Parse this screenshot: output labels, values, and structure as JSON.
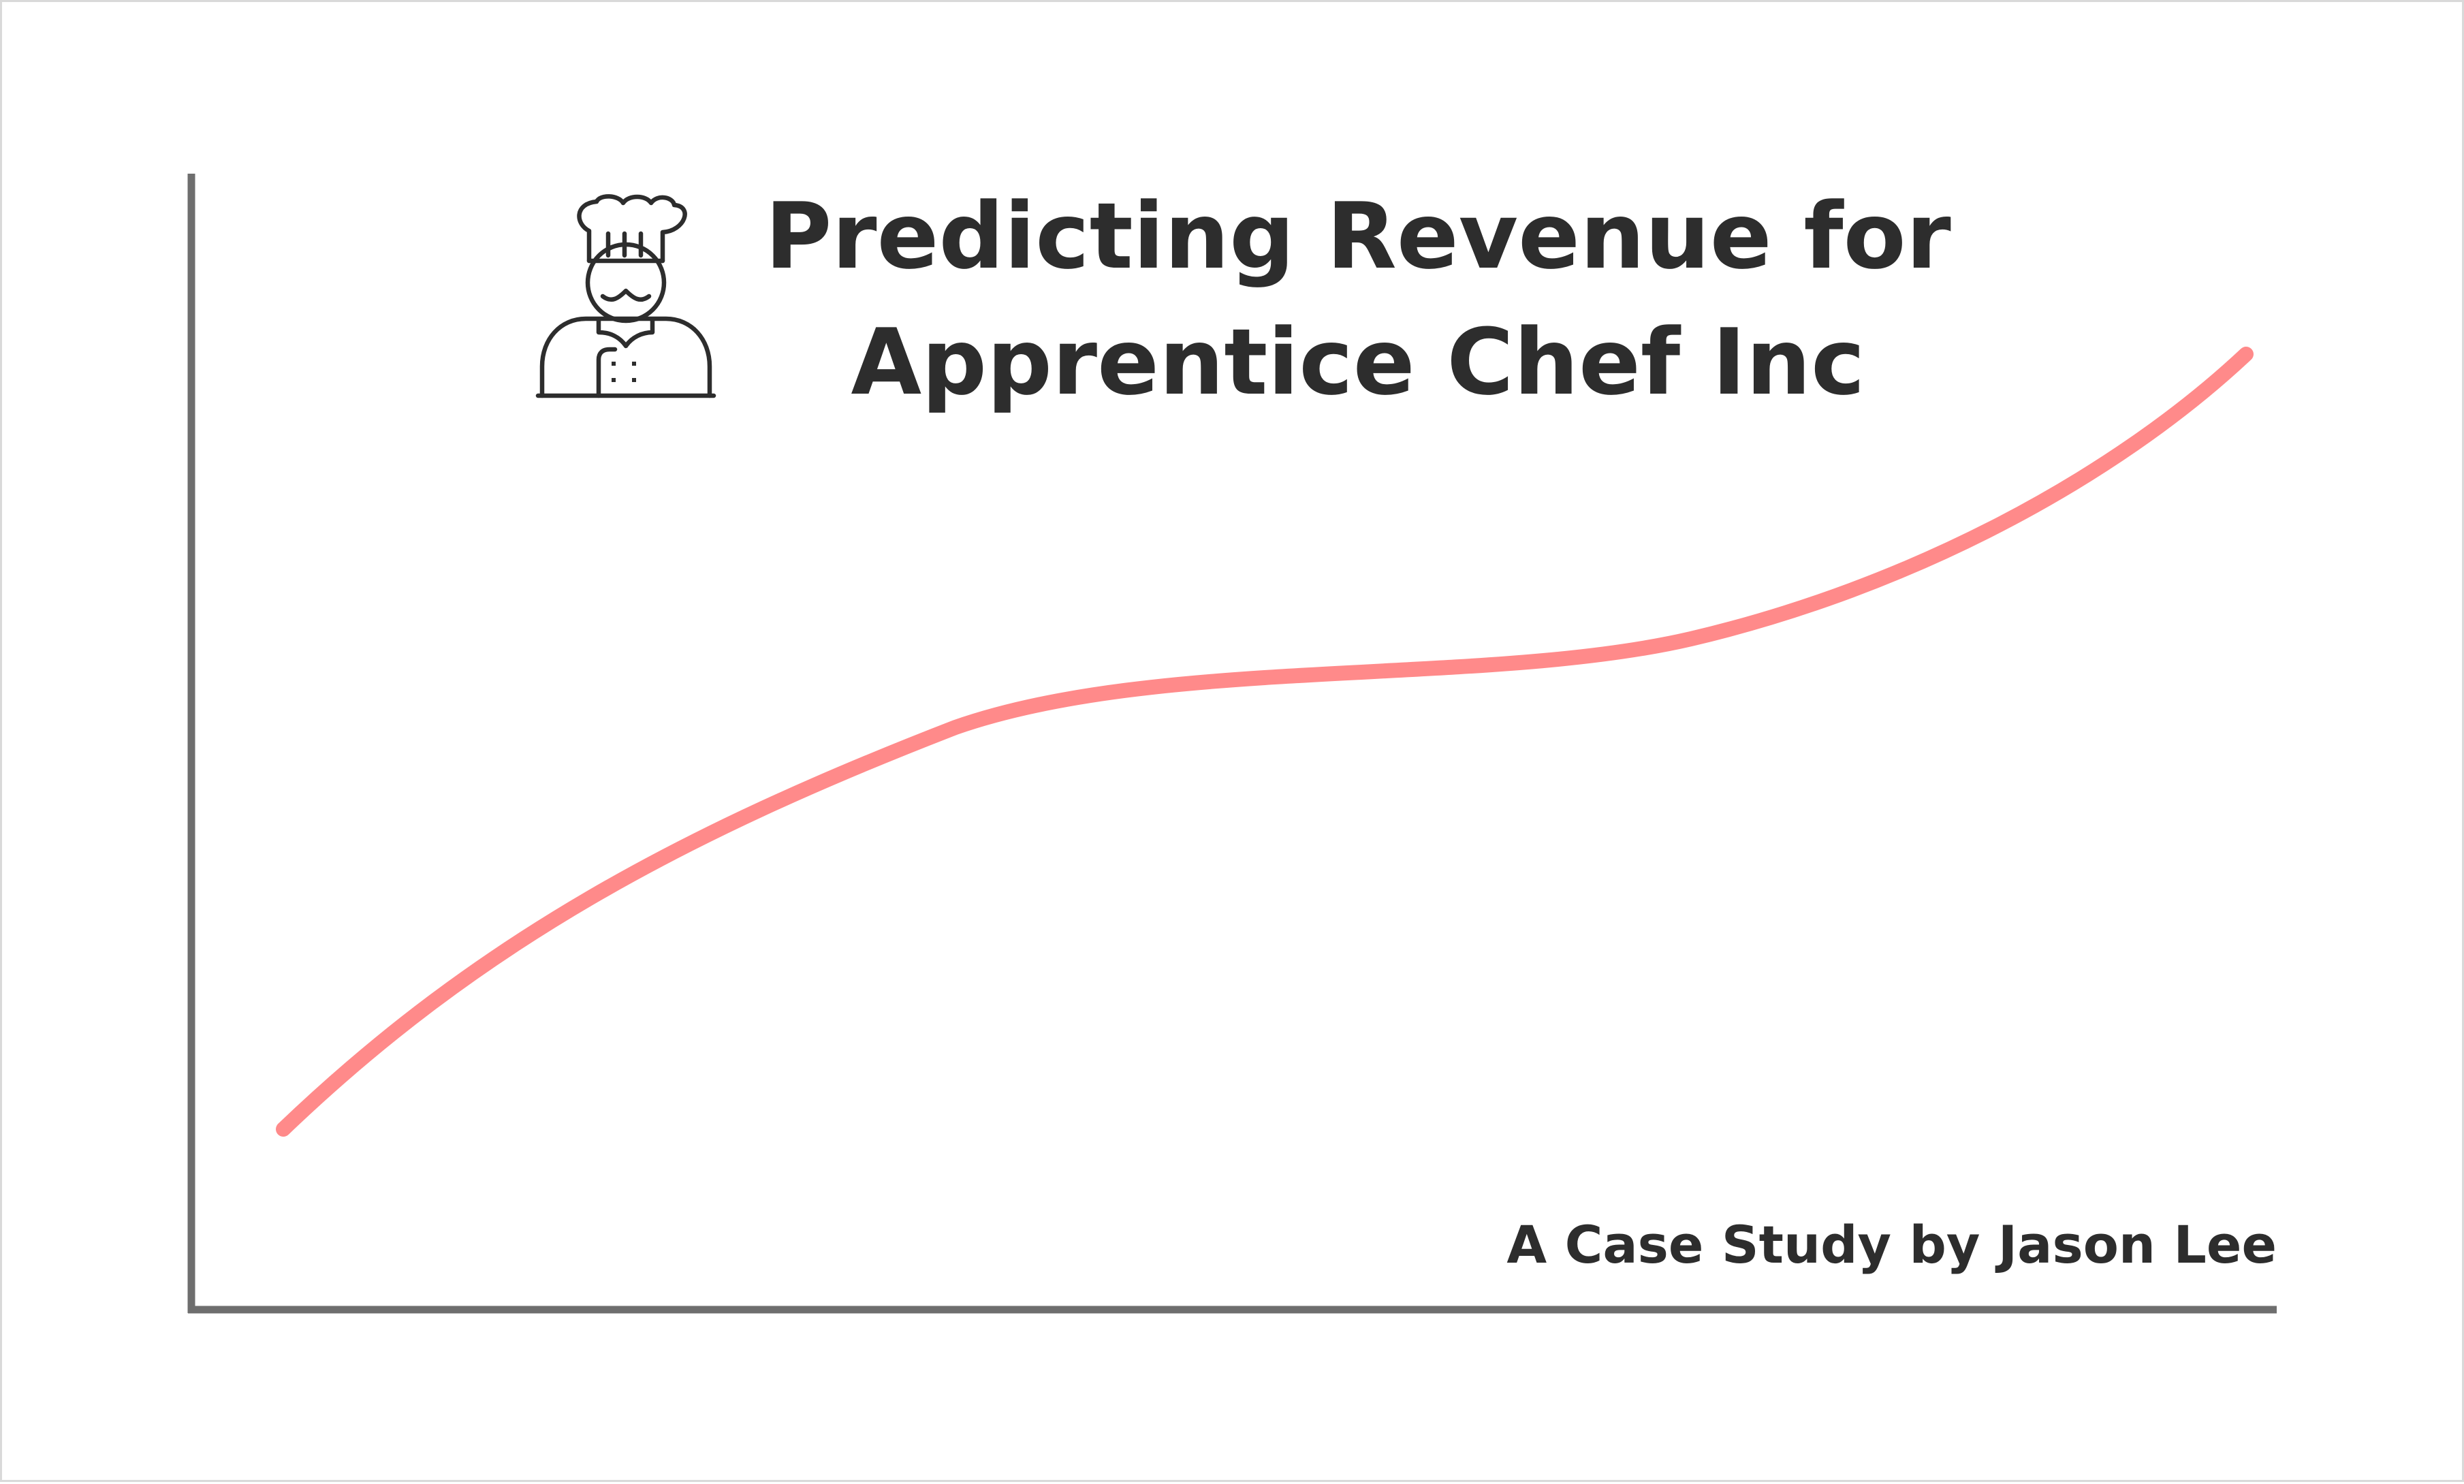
{
  "title": {
    "line1": "Predicting Revenue for",
    "line2": "Apprentice Chef Inc"
  },
  "byline": "A Case Study by Jason Lee",
  "icons": {
    "title_icon": "chef-icon"
  },
  "colors": {
    "curve": "#ff8a8a",
    "axes": "#6e6e6e",
    "text": "#2d2d2d",
    "border": "#d9d9d9"
  }
}
